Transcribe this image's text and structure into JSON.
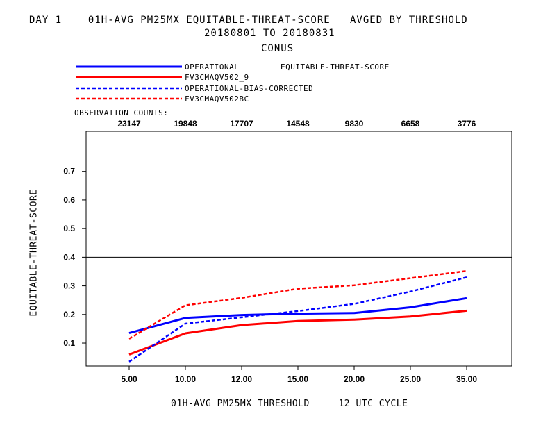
{
  "header": {
    "line1": "DAY 1    01H-AVG PM25MX EQUITABLE-THREAT-SCORE   AVGED BY THRESHOLD",
    "line2": "20180801 TO 20180831",
    "line3": "CONUS"
  },
  "legend": {
    "metric_label": "EQUITABLE-THREAT-SCORE",
    "observation_counts_label": "OBSERVATION COUNTS:"
  },
  "chart_data": {
    "type": "line",
    "categories": [
      "5.00",
      "10.00",
      "12.00",
      "15.00",
      "20.00",
      "25.00",
      "35.00"
    ],
    "observation_counts": [
      "23147",
      "19848",
      "17707",
      "14548",
      "9830",
      "6658",
      "3776"
    ],
    "series": [
      {
        "name": "OPERATIONAL",
        "color": "#0000ff",
        "style": "solid",
        "values": [
          0.135,
          0.188,
          0.198,
          0.203,
          0.205,
          0.225,
          0.257
        ]
      },
      {
        "name": "FV3CMAQV502_9",
        "color": "#ff0000",
        "style": "solid",
        "values": [
          0.06,
          0.134,
          0.163,
          0.177,
          0.182,
          0.193,
          0.213
        ]
      },
      {
        "name": "OPERATIONAL-BIAS-CORRECTED",
        "color": "#0000ff",
        "style": "dashed",
        "values": [
          0.035,
          0.168,
          0.19,
          0.212,
          0.237,
          0.28,
          0.33
        ]
      },
      {
        "name": "FV3CMAQV502BC",
        "color": "#ff0000",
        "style": "dashed",
        "values": [
          0.115,
          0.232,
          0.258,
          0.29,
          0.302,
          0.327,
          0.352
        ]
      }
    ],
    "yticks": [
      "0.1",
      "0.2",
      "0.3",
      "0.4",
      "0.5",
      "0.6",
      "0.7"
    ],
    "ylim": [
      0.02,
      0.84
    ],
    "reference_line": 0.4,
    "ylabel": "EQUITABLE-THREAT-SCORE",
    "xlabel": "01H-AVG PM25MX THRESHOLD     12 UTC CYCLE"
  }
}
